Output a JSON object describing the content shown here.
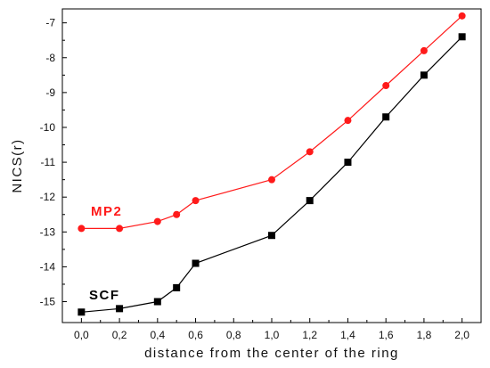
{
  "chart_data": {
    "type": "line",
    "xlabel": "distance from the center of the ring",
    "ylabel": "NICS(r)",
    "xlim": [
      -0.1,
      2.1
    ],
    "ylim": [
      -15.6,
      -6.6
    ],
    "x_ticks": [
      0.0,
      0.2,
      0.4,
      0.6,
      0.8,
      1.0,
      1.2,
      1.4,
      1.6,
      1.8,
      2.0
    ],
    "x_tick_labels": [
      "0,0",
      "0,2",
      "0,4",
      "0,6",
      "0,8",
      "1,0",
      "1,2",
      "1,4",
      "1,6",
      "1,8",
      "2,0"
    ],
    "y_ticks": [
      -15,
      -14,
      -13,
      -12,
      -11,
      -10,
      -9,
      -8,
      -7
    ],
    "y_tick_labels": [
      "-15",
      "-14",
      "-13",
      "-12",
      "-11",
      "-10",
      "-9",
      "-8",
      "-7"
    ],
    "grid": false,
    "series": [
      {
        "name": "MP2",
        "color": "#ff1a1a",
        "marker": "circle",
        "x": [
          0.0,
          0.2,
          0.4,
          0.5,
          0.6,
          1.0,
          1.2,
          1.4,
          1.6,
          1.8,
          2.0
        ],
        "y": [
          -12.9,
          -12.9,
          -12.7,
          -12.5,
          -12.1,
          -11.5,
          -10.7,
          -9.8,
          -8.8,
          -7.8,
          -6.8
        ]
      },
      {
        "name": "SCF",
        "color": "#000000",
        "marker": "square",
        "x": [
          0.0,
          0.2,
          0.4,
          0.5,
          0.6,
          1.0,
          1.2,
          1.4,
          1.6,
          1.8,
          2.0
        ],
        "y": [
          -15.3,
          -15.2,
          -15.0,
          -14.6,
          -13.9,
          -13.1,
          -12.1,
          -11.0,
          -9.7,
          -8.5,
          -7.4
        ]
      }
    ]
  }
}
